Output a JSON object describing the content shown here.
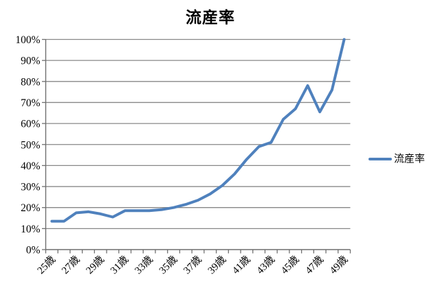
{
  "chart_data": {
    "type": "line",
    "title": "流産率",
    "series": [
      {
        "name": "流産率",
        "color": "#4F81BD",
        "values": [
          13.5,
          13.5,
          17.5,
          18,
          17,
          15.5,
          18.5,
          18.5,
          18.5,
          19,
          20,
          21.5,
          23.5,
          26.5,
          30.5,
          36,
          43,
          49,
          51,
          62,
          67,
          78,
          65.5,
          76,
          100
        ]
      }
    ],
    "x_ages": [
      25,
      26,
      27,
      28,
      29,
      30,
      31,
      32,
      33,
      34,
      35,
      36,
      37,
      38,
      39,
      40,
      41,
      42,
      43,
      44,
      45,
      46,
      47,
      48,
      49
    ],
    "x_tick_labels": [
      "25歳",
      "27歳",
      "29歳",
      "31歳",
      "33歳",
      "35歳",
      "37歳",
      "39歳",
      "41歳",
      "43歳",
      "45歳",
      "47歳",
      "49歳"
    ],
    "y_tick_labels": [
      "0%",
      "10%",
      "20%",
      "30%",
      "40%",
      "50%",
      "60%",
      "70%",
      "80%",
      "90%",
      "100%"
    ],
    "ylim": [
      0,
      100
    ],
    "grid": {
      "horizontal": true,
      "vertical": false
    },
    "colors": {
      "line": "#4F81BD",
      "gridline": "#878787",
      "axis": "#6f6f6f",
      "text": "#000000",
      "background": "#ffffff"
    },
    "legend": {
      "position": "right",
      "label": "流産率"
    }
  }
}
